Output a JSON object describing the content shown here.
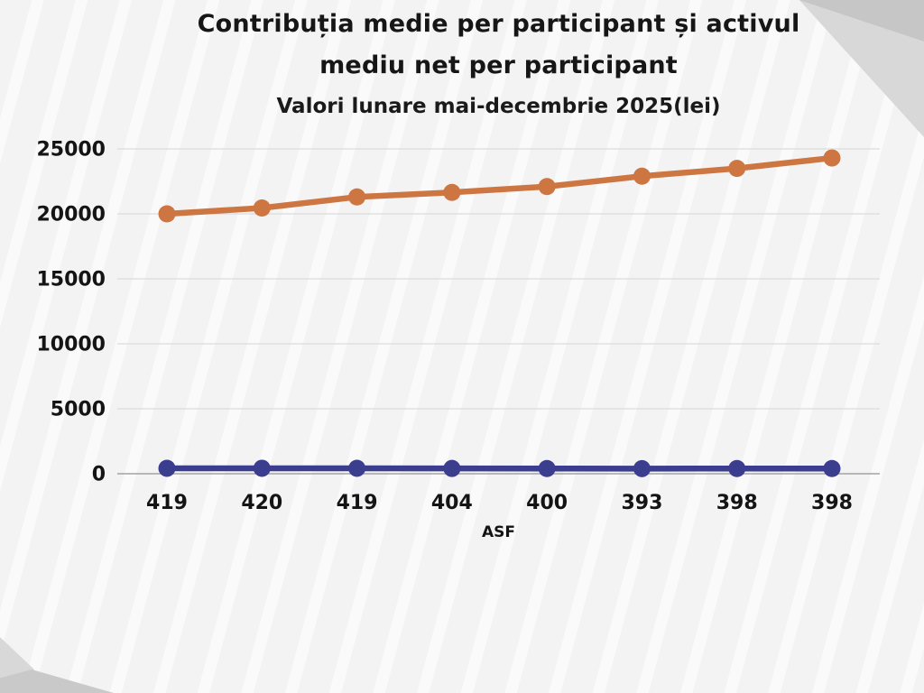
{
  "title": {
    "line1": "Contribuția medie per participant și activul",
    "line2": "mediu net per participant",
    "subtitle": "Valori lunare mai-decembrie 2025(lei)"
  },
  "chart_data": {
    "type": "line",
    "title": "Contribuția medie per participant și activul mediu net per participant",
    "subtitle": "Valori lunare mai-decembrie 2025(lei)",
    "xlabel": "ASF",
    "ylabel": "",
    "categories": [
      "419",
      "420",
      "419",
      "404",
      "400",
      "393",
      "398",
      "398"
    ],
    "yticks": [
      0,
      5000,
      10000,
      15000,
      20000,
      25000
    ],
    "ylim": [
      0,
      26500
    ],
    "grid": true,
    "legend_position": "none",
    "series": [
      {
        "name": "Activul mediu net per participant",
        "color": "#cd7642",
        "marker": "circle",
        "values": [
          20000,
          20450,
          21300,
          21650,
          22100,
          22900,
          23500,
          24300
        ]
      },
      {
        "name": "Contribuția medie per participant",
        "color": "#3b3d8f",
        "marker": "circle",
        "values": [
          419,
          420,
          419,
          404,
          400,
          393,
          398,
          398
        ]
      }
    ]
  },
  "style": {
    "background": "#f3f3f4",
    "grid_color": "#dcdcdc",
    "axis_color": "#a3a3a3",
    "text_color": "#141414",
    "triangle_light": "#d8d8d8",
    "triangle_dark": "#c6c6c6"
  }
}
